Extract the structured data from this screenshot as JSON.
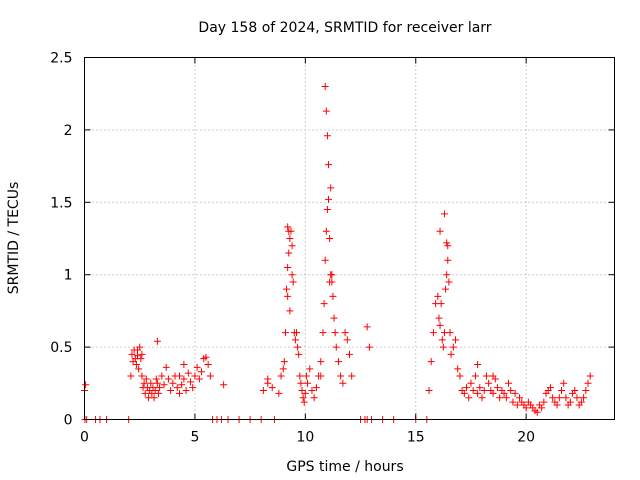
{
  "chart_data": {
    "type": "scatter",
    "title": "Day 158 of 2024, SRMTID for receiver larr",
    "xlabel": "GPS time / hours",
    "ylabel": "SRMTID / TECUs",
    "xlim": [
      0,
      24
    ],
    "ylim": [
      0,
      2.5
    ],
    "xticks": [
      0,
      5,
      10,
      15,
      20
    ],
    "yticks": [
      0,
      0.5,
      1,
      1.5,
      2,
      2.5
    ],
    "xtick_labels": [
      "0",
      "5",
      "10",
      "15",
      "20"
    ],
    "ytick_labels": [
      "0",
      "0.5",
      "1",
      "1.5",
      "2",
      "2.5"
    ],
    "grid": true,
    "marker": "+",
    "color": "#ff0000",
    "series": [
      {
        "name": "SRMTID",
        "x": [
          0.0,
          0.02,
          0.05,
          0.1,
          0.5,
          0.7,
          1.0,
          2.0,
          2.1,
          2.15,
          2.2,
          2.25,
          2.3,
          2.35,
          2.4,
          2.45,
          2.5,
          2.55,
          2.6,
          2.65,
          2.7,
          2.75,
          2.8,
          2.85,
          2.9,
          2.95,
          3.0,
          3.05,
          3.1,
          3.15,
          3.2,
          3.25,
          3.3,
          3.35,
          3.4,
          3.5,
          3.6,
          3.7,
          3.8,
          3.9,
          4.0,
          4.1,
          4.2,
          4.3,
          4.4,
          4.5,
          4.6,
          4.7,
          4.8,
          4.9,
          5.0,
          5.1,
          5.2,
          5.3,
          5.4,
          5.5,
          5.6,
          5.7,
          5.8,
          6.0,
          6.2,
          6.5,
          7.0,
          7.5,
          8.0,
          8.1,
          8.3,
          8.5,
          8.6,
          8.8,
          8.9,
          9.0,
          9.05,
          9.1,
          9.15,
          9.2,
          9.25,
          9.3,
          9.35,
          9.4,
          9.45,
          9.5,
          9.55,
          9.6,
          9.65,
          9.7,
          9.75,
          9.8,
          9.85,
          9.9,
          9.95,
          10.0,
          10.05,
          10.1,
          10.2,
          10.3,
          10.4,
          10.5,
          10.6,
          10.7,
          10.8,
          10.85,
          10.9,
          10.95,
          11.0,
          11.05,
          11.1,
          11.15,
          11.2,
          11.25,
          11.3,
          11.35,
          11.4,
          11.5,
          11.6,
          11.7,
          11.8,
          11.9,
          12.0,
          12.1,
          12.5,
          12.7,
          12.8,
          13.0,
          13.5,
          14.0,
          15.0,
          15.5,
          15.6,
          15.7,
          15.8,
          15.9,
          16.0,
          16.05,
          16.1,
          16.15,
          16.2,
          16.25,
          16.3,
          16.35,
          16.4,
          16.45,
          16.5,
          16.55,
          16.6,
          16.7,
          16.8,
          16.9,
          17.0,
          17.1,
          17.2,
          17.3,
          17.4,
          17.5,
          17.6,
          17.7,
          17.8,
          17.9,
          18.0,
          18.1,
          18.2,
          18.3,
          18.4,
          18.5,
          18.6,
          18.7,
          18.8,
          18.9,
          19.0,
          19.1,
          19.2,
          19.3,
          19.4,
          19.5,
          19.6,
          19.7,
          19.8,
          19.9,
          20.0,
          20.1,
          20.2,
          20.3,
          20.4,
          20.5,
          20.6,
          20.7,
          20.8,
          20.9,
          21.0,
          21.1,
          21.2,
          21.3,
          21.4,
          21.5,
          21.6,
          21.7,
          21.8,
          21.9,
          22.0,
          22.1,
          22.2,
          22.3,
          22.4,
          22.5,
          22.6,
          22.7,
          22.8,
          22.9,
          2.6,
          2.4,
          4.3,
          4.5,
          9.3,
          9.2,
          10.7,
          11.1,
          11.2,
          16.3,
          16.1,
          17.8,
          18.5,
          10.9,
          10.95,
          11.0,
          11.05,
          11.15,
          16.4,
          16.45,
          9.2,
          9.25,
          9.4,
          3.3,
          12.8,
          12.9,
          8.3,
          6.3
        ],
        "y": [
          0.2,
          0.0,
          0.24,
          0.0,
          0.0,
          0.0,
          0.0,
          0.0,
          0.3,
          0.45,
          0.4,
          0.48,
          0.42,
          0.38,
          0.44,
          0.35,
          0.5,
          0.42,
          0.3,
          0.22,
          0.25,
          0.18,
          0.28,
          0.22,
          0.15,
          0.2,
          0.25,
          0.18,
          0.22,
          0.15,
          0.2,
          0.28,
          0.25,
          0.18,
          0.22,
          0.3,
          0.24,
          0.36,
          0.28,
          0.2,
          0.25,
          0.3,
          0.22,
          0.18,
          0.24,
          0.28,
          0.2,
          0.32,
          0.26,
          0.22,
          0.3,
          0.36,
          0.28,
          0.33,
          0.42,
          0.43,
          0.38,
          0.3,
          0.0,
          0.0,
          0.0,
          0.0,
          0.0,
          0.0,
          0.0,
          0.2,
          0.25,
          0.22,
          0.0,
          0.18,
          0.3,
          0.35,
          0.4,
          0.6,
          0.9,
          1.05,
          1.15,
          1.25,
          1.3,
          1.2,
          0.95,
          0.6,
          0.55,
          0.6,
          0.5,
          0.45,
          0.3,
          0.25,
          0.2,
          0.15,
          0.12,
          0.18,
          0.3,
          0.25,
          0.35,
          0.2,
          0.15,
          0.22,
          0.3,
          0.4,
          0.6,
          0.8,
          1.1,
          1.3,
          1.45,
          1.52,
          1.25,
          1.0,
          0.95,
          0.85,
          0.7,
          0.6,
          0.5,
          0.4,
          0.3,
          0.25,
          0.6,
          0.55,
          0.45,
          0.3,
          0.0,
          0.0,
          0.0,
          0.0,
          0.0,
          0.0,
          0.0,
          0.0,
          0.2,
          0.4,
          0.6,
          0.8,
          0.85,
          0.7,
          0.65,
          0.8,
          0.55,
          0.5,
          0.6,
          0.9,
          1.0,
          1.1,
          0.95,
          0.6,
          0.45,
          0.5,
          0.55,
          0.35,
          0.3,
          0.2,
          0.18,
          0.22,
          0.15,
          0.25,
          0.2,
          0.3,
          0.18,
          0.22,
          0.15,
          0.2,
          0.3,
          0.25,
          0.2,
          0.18,
          0.28,
          0.22,
          0.15,
          0.2,
          0.18,
          0.15,
          0.25,
          0.2,
          0.12,
          0.18,
          0.1,
          0.15,
          0.12,
          0.1,
          0.08,
          0.12,
          0.1,
          0.08,
          0.06,
          0.05,
          0.1,
          0.08,
          0.12,
          0.18,
          0.2,
          0.22,
          0.15,
          0.12,
          0.1,
          0.15,
          0.2,
          0.25,
          0.15,
          0.1,
          0.12,
          0.18,
          0.2,
          0.15,
          0.1,
          0.12,
          0.15,
          0.2,
          0.25,
          0.3,
          0.45,
          0.48,
          0.3,
          0.38,
          0.75,
          0.85,
          0.3,
          0.95,
          1.0,
          1.42,
          1.3,
          0.38,
          0.3,
          2.3,
          2.13,
          1.96,
          1.76,
          1.6,
          1.22,
          1.2,
          1.33,
          1.3,
          1.0,
          0.54,
          0.64,
          0.5,
          0.28,
          0.24
        ]
      }
    ]
  }
}
